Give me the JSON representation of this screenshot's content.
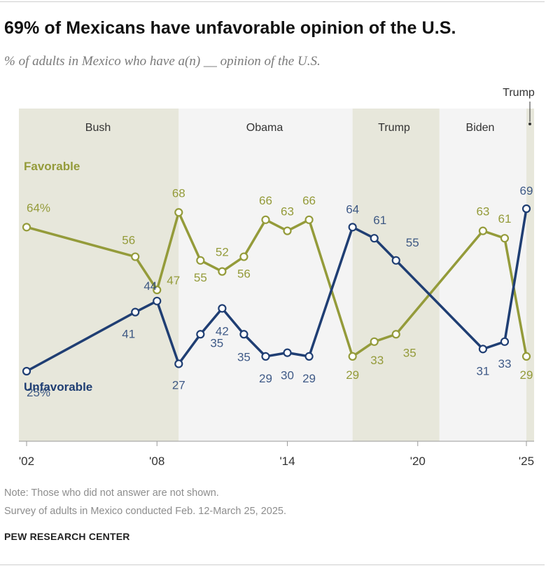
{
  "title": "69% of Mexicans have unfavorable opinion of the U.S.",
  "subtitle": "% of adults in Mexico who have a(n) __ opinion of the U.S.",
  "chart_data": {
    "type": "line",
    "xlim": [
      2002,
      2025
    ],
    "ylim": [
      0,
      100
    ],
    "x_ticks": [
      2002,
      2008,
      2014,
      2020,
      2025
    ],
    "x_tick_labels": [
      "'02",
      "'08",
      "'14",
      "'20",
      "'25"
    ],
    "eras": [
      {
        "label": "Bush",
        "start": 2002,
        "end": 2009,
        "fill": "#e7e7db"
      },
      {
        "label": "Obama",
        "start": 2009,
        "end": 2017,
        "fill": "#f4f4f4"
      },
      {
        "label": "Trump",
        "start": 2017,
        "end": 2021,
        "fill": "#e7e7db"
      },
      {
        "label": "Biden",
        "start": 2021,
        "end": 2025,
        "fill": "#f4f4f4"
      },
      {
        "label": "Trump",
        "start": 2025,
        "end": 2025.5,
        "fill": "#e7e7db"
      }
    ],
    "series": [
      {
        "name": "Favorable",
        "color": "#949b3a",
        "x": [
          2002,
          2007,
          2008,
          2009,
          2010,
          2011,
          2012,
          2013,
          2014,
          2015,
          2017,
          2018,
          2019,
          2023,
          2024,
          2025
        ],
        "values": [
          64,
          56,
          47,
          68,
          55,
          52,
          56,
          66,
          63,
          66,
          29,
          33,
          35,
          63,
          61,
          29
        ],
        "labels": [
          "64%",
          "56",
          "47",
          "68",
          "55",
          "52",
          "56",
          "66",
          "63",
          "66",
          "29",
          "33",
          "35",
          "63",
          "61",
          "29"
        ]
      },
      {
        "name": "Unfavorable",
        "color": "#1f3e73",
        "x": [
          2002,
          2007,
          2008,
          2009,
          2010,
          2011,
          2012,
          2013,
          2014,
          2015,
          2017,
          2018,
          2019,
          2023,
          2024,
          2025
        ],
        "values": [
          25,
          41,
          44,
          27,
          35,
          42,
          35,
          29,
          30,
          29,
          64,
          61,
          55,
          31,
          33,
          69
        ],
        "labels": [
          "25%",
          "41",
          "44",
          "27",
          "35",
          "42",
          "35",
          "29",
          "30",
          "29",
          "64",
          "61",
          "55",
          "31",
          "33",
          "69"
        ]
      }
    ]
  },
  "note": "Note: Those who did not answer are not shown.",
  "source": "Survey of adults in Mexico conducted Feb. 12-March 25, 2025.",
  "brand": "PEW RESEARCH CENTER"
}
